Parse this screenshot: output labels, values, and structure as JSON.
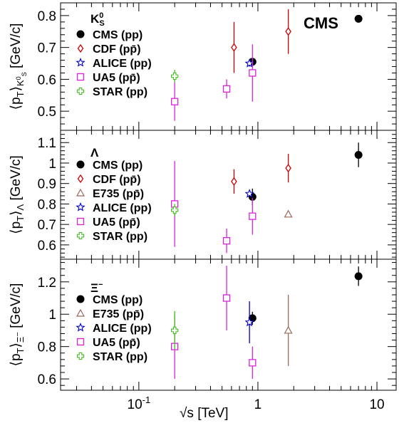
{
  "figure": {
    "xlabel": "√s  [TeV]",
    "x_ticks": [
      {
        "value": 0.1,
        "label": "10^-1"
      },
      {
        "value": 1,
        "label": "1"
      },
      {
        "value": 10,
        "label": "10"
      }
    ],
    "xlim": [
      0.022,
      14.5
    ],
    "x_scale": "log",
    "brand": "CMS"
  },
  "chart_data": [
    {
      "type": "scatter",
      "panel": "kshort",
      "title": "K0S",
      "ylabel": "⟨pT⟩K0S [GeV/c]",
      "ylim": [
        0.44,
        0.84
      ],
      "y_ticks": [
        0.5,
        0.6,
        0.7,
        0.8
      ],
      "y_tick_labels": [
        "0.5",
        "0.6",
        "0.7",
        "0.8"
      ],
      "series": [
        {
          "name": "CMS (pp)",
          "marker": "filled-circle",
          "color": "#000000",
          "points": [
            {
              "x": 0.9,
              "y": 0.655,
              "err": 0.005
            },
            {
              "x": 7.0,
              "y": 0.79,
              "err": 0.005
            }
          ]
        },
        {
          "name": "CDF (pp̄)",
          "marker": "open-diamond",
          "color": "#cc0000",
          "points": [
            {
              "x": 0.63,
              "y": 0.7,
              "err": 0.08
            },
            {
              "x": 1.8,
              "y": 0.75,
              "err": 0.07
            }
          ]
        },
        {
          "name": "ALICE (pp)",
          "marker": "open-star",
          "color": "#0000cc",
          "points": [
            {
              "x": 0.85,
              "y": 0.65,
              "err": 0.01
            }
          ]
        },
        {
          "name": "UA5 (pp̄)",
          "marker": "open-square",
          "color": "#dd22dd",
          "points": [
            {
              "x": 0.2,
              "y": 0.53,
              "err": 0.06
            },
            {
              "x": 0.546,
              "y": 0.57,
              "err": 0.03
            },
            {
              "x": 0.9,
              "y": 0.62,
              "err": 0.09
            }
          ]
        },
        {
          "name": "STAR (pp)",
          "marker": "open-cross",
          "color": "#44bb22",
          "points": [
            {
              "x": 0.2,
              "y": 0.61,
              "err": 0.02
            }
          ]
        }
      ]
    },
    {
      "type": "scatter",
      "panel": "lambda",
      "title": "Λ",
      "ylabel": "⟨pT⟩Λ [GeV/c]",
      "ylim": [
        0.53,
        1.16
      ],
      "y_ticks": [
        0.6,
        0.7,
        0.8,
        0.9,
        1.0,
        1.1
      ],
      "y_tick_labels": [
        "0.6",
        "0.7",
        "0.8",
        "0.9",
        "1",
        "1.1"
      ],
      "series": [
        {
          "name": "CMS (pp)",
          "marker": "filled-circle",
          "color": "#000000",
          "points": [
            {
              "x": 0.9,
              "y": 0.835,
              "err": 0.04
            },
            {
              "x": 7.0,
              "y": 1.04,
              "err": 0.06
            }
          ]
        },
        {
          "name": "CDF (pp̄)",
          "marker": "open-diamond",
          "color": "#cc0000",
          "points": [
            {
              "x": 0.63,
              "y": 0.91,
              "err": 0.06
            },
            {
              "x": 1.8,
              "y": 0.975,
              "err": 0.07
            }
          ]
        },
        {
          "name": "E735 (pp̄)",
          "marker": "open-triangle",
          "color": "#9a6a5a",
          "points": [
            {
              "x": 1.8,
              "y": 0.75,
              "err": 0.0
            }
          ]
        },
        {
          "name": "ALICE (pp)",
          "marker": "open-star",
          "color": "#0000cc",
          "points": [
            {
              "x": 0.85,
              "y": 0.85,
              "err": 0.01
            }
          ]
        },
        {
          "name": "UA5 (pp̄)",
          "marker": "open-square",
          "color": "#dd22dd",
          "points": [
            {
              "x": 0.2,
              "y": 0.8,
              "err": 0.21
            },
            {
              "x": 0.546,
              "y": 0.62,
              "err": 0.06
            },
            {
              "x": 0.9,
              "y": 0.74,
              "err": 0.09
            }
          ]
        },
        {
          "name": "STAR (pp)",
          "marker": "open-cross",
          "color": "#44bb22",
          "points": [
            {
              "x": 0.2,
              "y": 0.77,
              "err": 0.03
            }
          ]
        }
      ]
    },
    {
      "type": "scatter",
      "panel": "xi",
      "title": "Ξ−",
      "ylabel": "⟨pT⟩Ξ− [GeV/c]",
      "ylim": [
        0.53,
        1.34
      ],
      "y_ticks": [
        0.6,
        0.8,
        1.0,
        1.2
      ],
      "y_tick_labels": [
        "0.6",
        "0.8",
        "1",
        "1.2"
      ],
      "series": [
        {
          "name": "CMS (pp)",
          "marker": "filled-circle",
          "color": "#000000",
          "points": [
            {
              "x": 0.9,
              "y": 0.975,
              "err": 0.04
            },
            {
              "x": 7.0,
              "y": 1.235,
              "err": 0.06
            }
          ]
        },
        {
          "name": "E735 (pp̄)",
          "marker": "open-triangle",
          "color": "#9a6a5a",
          "points": [
            {
              "x": 1.8,
              "y": 0.9,
              "err": 0.22
            }
          ]
        },
        {
          "name": "ALICE (pp)",
          "marker": "open-star",
          "color": "#0000cc",
          "points": [
            {
              "x": 0.85,
              "y": 0.95,
              "err": 0.13
            }
          ]
        },
        {
          "name": "UA5 (pp̄)",
          "marker": "open-square",
          "color": "#dd22dd",
          "points": [
            {
              "x": 0.2,
              "y": 0.8,
              "err": 0.2
            },
            {
              "x": 0.546,
              "y": 1.1,
              "err": 0.2
            },
            {
              "x": 0.9,
              "y": 0.7,
              "err": 0.1
            }
          ]
        },
        {
          "name": "STAR (pp)",
          "marker": "open-cross",
          "color": "#44bb22",
          "points": [
            {
              "x": 0.2,
              "y": 0.9,
              "err": 0.12
            }
          ]
        }
      ]
    }
  ]
}
